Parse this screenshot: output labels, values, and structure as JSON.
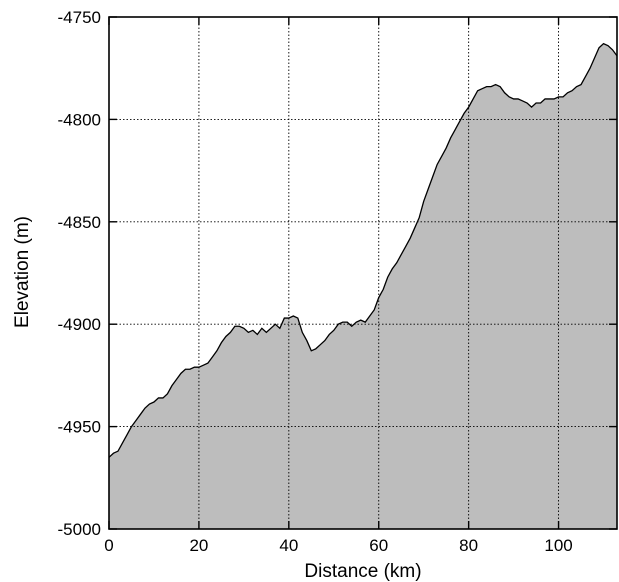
{
  "chart_data": {
    "type": "area",
    "title": "",
    "xlabel": "Distance (km)",
    "ylabel": "Elevation (m)",
    "xlim": [
      0,
      113
    ],
    "ylim": [
      -5000,
      -4750
    ],
    "xticks": [
      0,
      20,
      40,
      60,
      80,
      100
    ],
    "yticks": [
      -5000,
      -4950,
      -4900,
      -4850,
      -4800,
      -4750
    ],
    "xtick_labels": [
      "0",
      "20",
      "40",
      "60",
      "80",
      "100"
    ],
    "ytick_labels": [
      "-5000",
      "-4950",
      "-4900",
      "-4850",
      "-4800",
      "-4750"
    ],
    "grid": true,
    "fill_color": "#bdbdbd",
    "line_color": "#000000",
    "series": [
      {
        "x": [
          0,
          1,
          2,
          3,
          4,
          5,
          6,
          7,
          8,
          9,
          10,
          11,
          12,
          13,
          14,
          15,
          16,
          17,
          18,
          19,
          20,
          21,
          22,
          23,
          24,
          25,
          26,
          27,
          28,
          29,
          30,
          31,
          32,
          33,
          34,
          35,
          36,
          37,
          38,
          39,
          40,
          41,
          42,
          43,
          44,
          45,
          46,
          47,
          48,
          49,
          50,
          51,
          52,
          53,
          54,
          55,
          56,
          57,
          58,
          59,
          60,
          61,
          62,
          63,
          64,
          65,
          66,
          67,
          68,
          69,
          70,
          71,
          72,
          73,
          74,
          75,
          76,
          77,
          78,
          79,
          80,
          81,
          82,
          83,
          84,
          85,
          86,
          87,
          88,
          89,
          90,
          91,
          92,
          93,
          94,
          95,
          96,
          97,
          98,
          99,
          100,
          101,
          102,
          103,
          104,
          105,
          106,
          107,
          108,
          109,
          110,
          111,
          112,
          113
        ],
        "y": [
          -4965,
          -4963,
          -4962,
          -4958,
          -4954,
          -4950,
          -4947,
          -4944,
          -4941,
          -4939,
          -4938,
          -4936,
          -4936,
          -4934,
          -4930,
          -4927,
          -4924,
          -4922,
          -4922,
          -4921,
          -4921,
          -4920,
          -4919,
          -4916,
          -4913,
          -4909,
          -4906,
          -4904,
          -4901,
          -4901,
          -4902,
          -4904,
          -4903,
          -4905,
          -4902,
          -4904,
          -4902,
          -4900,
          -4902,
          -4897,
          -4897,
          -4896,
          -4897,
          -4904,
          -4908,
          -4913,
          -4912,
          -4910,
          -4908,
          -4905,
          -4903,
          -4900,
          -4899,
          -4899,
          -4901,
          -4899,
          -4898,
          -4899,
          -4896,
          -4893,
          -4887,
          -4883,
          -4877,
          -4873,
          -4870,
          -4866,
          -4862,
          -4858,
          -4853,
          -4848,
          -4840,
          -4834,
          -4828,
          -4822,
          -4818,
          -4814,
          -4809,
          -4805,
          -4801,
          -4797,
          -4794,
          -4790,
          -4786,
          -4785,
          -4784,
          -4784,
          -4783,
          -4784,
          -4787,
          -4789,
          -4790,
          -4790,
          -4791,
          -4792,
          -4794,
          -4792,
          -4792,
          -4790,
          -4790,
          -4790,
          -4789,
          -4789,
          -4787,
          -4786,
          -4784,
          -4783,
          -4779,
          -4775,
          -4770,
          -4765,
          -4763,
          -4764,
          -4766,
          -4769
        ]
      }
    ]
  }
}
